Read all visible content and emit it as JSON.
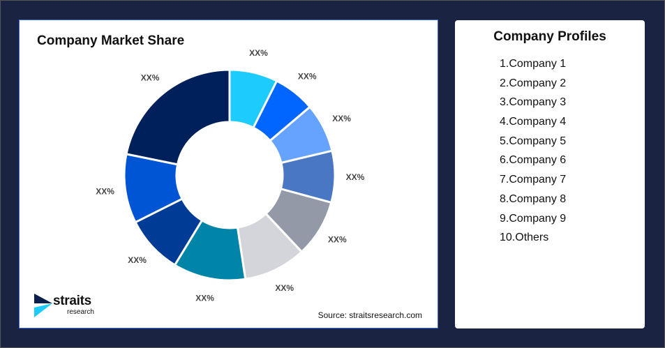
{
  "chart_data": {
    "type": "pie",
    "donut": true,
    "title": "Company Market Share",
    "slices": [
      {
        "label": "XX%",
        "share": 7.4,
        "color": "#1ecbfd"
      },
      {
        "label": "XX%",
        "share": 6.4,
        "color": "#0066ff"
      },
      {
        "label": "XX%",
        "share": 7.5,
        "color": "#66a3ff"
      },
      {
        "label": "XX%",
        "share": 7.9,
        "color": "#4a77c4"
      },
      {
        "label": "XX%",
        "share": 8.8,
        "color": "#9399a7"
      },
      {
        "label": "XX%",
        "share": 9.6,
        "color": "#d4d5da"
      },
      {
        "label": "XX%",
        "share": 11.1,
        "color": "#0084a8"
      },
      {
        "label": "XX%",
        "share": 8.9,
        "color": "#003b95"
      },
      {
        "label": "XX%",
        "share": 10.6,
        "color": "#0055d4"
      },
      {
        "label": "XX%",
        "share": 21.8,
        "color": "#00205b"
      }
    ]
  },
  "source": "Source: straitsresearch.com",
  "logo": {
    "line1": "straits",
    "line2": "research"
  },
  "profiles": {
    "title": "Company Profiles",
    "items": [
      "1.Company 1",
      "2.Company 2",
      "3.Company 3",
      "4.Company 4",
      "5.Company 5",
      "6.Company 6",
      "7.Company 7",
      "8.Company 8",
      "9.Company 9",
      "10.Others"
    ]
  }
}
